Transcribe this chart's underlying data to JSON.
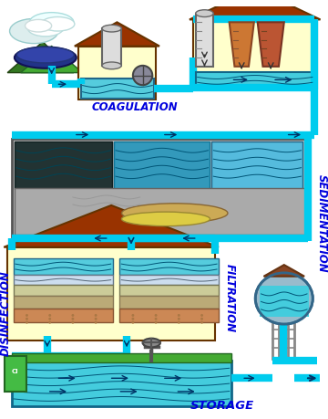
{
  "background_color": "#ffffff",
  "labels": {
    "coagulation": "COAGULATION",
    "sedimentation": "SEDIMENTATION",
    "filtration": "FILTRATION",
    "disinfection": "DISINFECTION",
    "storage": "STORAGE"
  },
  "label_color": "#0000dd",
  "label_fontsize": 8.5,
  "pipe_color": "#00ccee",
  "pipe_lw": 6,
  "house_wall": "#ffffcc",
  "house_roof": "#993300",
  "house_edge": "#663300",
  "water_light": "#55ddee",
  "water_dark": "#33aacc",
  "sed_gray": "#aaaaaa",
  "dark_sludge": "#2a3a2a",
  "medium_water": "#44aacc",
  "clean_water": "#66ddee",
  "sludge_tan": "#ccaa55",
  "sludge_yellow": "#ddcc44",
  "filt_top_water": "#55ccdd",
  "filt_sand": "#ddcc99",
  "filt_gravel": "#bbaa77",
  "tower_body": "#bbccdd",
  "grass_green": "#44aa33",
  "cloud_white": "#eeeeff",
  "mountain_green": "#226633",
  "lake_dark": "#223388",
  "chem_gray": "#cccccc",
  "chem_brown1": "#cc7733",
  "chem_brown2": "#bb5522",
  "figsize": [
    3.6,
    4.59
  ],
  "dpi": 100
}
